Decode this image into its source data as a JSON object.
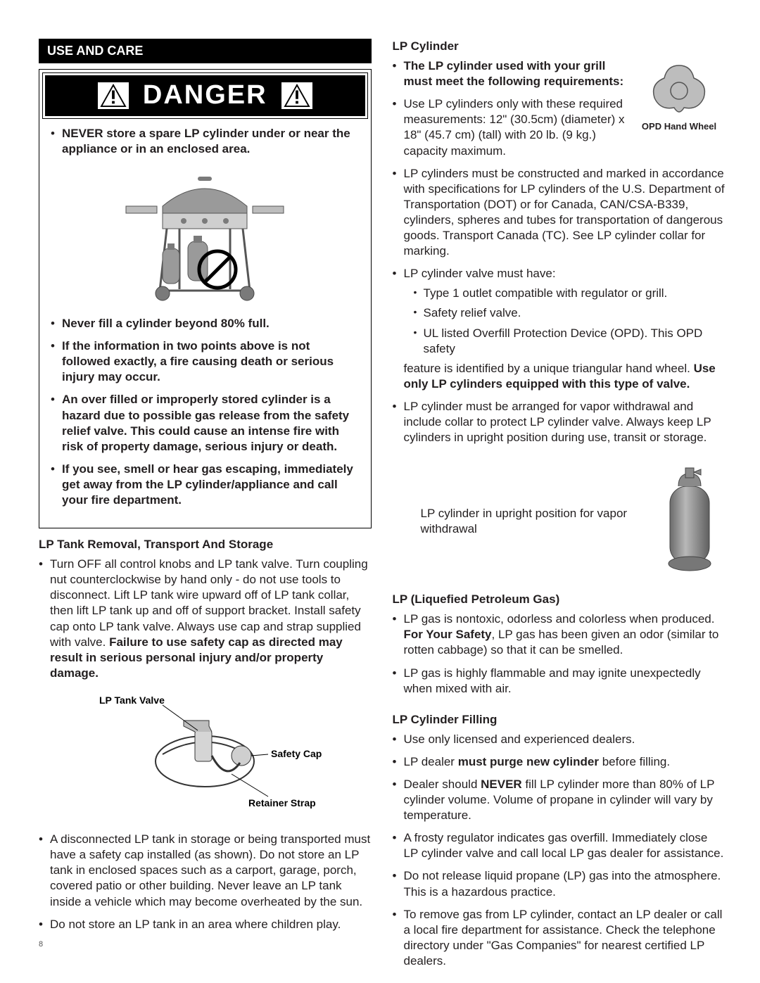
{
  "page_number": "8",
  "left": {
    "section_header": "USE AND CARE",
    "danger_word": "DANGER",
    "danger_bullets": [
      {
        "html": "<span class='bold'>NEVER store a spare LP cylinder under or near the appliance or in an enclosed area.</span>"
      },
      {
        "html": "<span class='bold'>Never fill a cylinder beyond 80% full.</span>"
      },
      {
        "html": "<span class='bold'>If the information in two points above is not followed exactly, a fire causing death or serious injury may occur.</span>"
      },
      {
        "html": "<span class='bold'>An over filled or improperly stored cylinder is a hazard due to possible gas release from the safety relief valve.  This could cause an intense fire with risk of property damage, serious injury or death.</span>"
      },
      {
        "html": "<span class='bold'>If you see, smell or hear gas escaping, immediately get away from the LP cylinder/appliance and call your fire department.</span>"
      }
    ],
    "tank_removal_heading": "LP Tank Removal, Transport And Storage",
    "tank_removal_bullets": [
      {
        "html": "Turn OFF all control knobs and LP tank valve. Turn coupling nut counterclockwise by hand only - do not use tools to disconnect. Lift LP tank wire upward off of LP tank collar, then lift LP tank up and off of support bracket. Install safety cap onto LP tank valve. Always use cap and strap supplied with valve. <span class='bold'>Failure to use safety cap as directed may result in serious personal injury and/or property damage.</span>"
      },
      {
        "html": "A disconnected LP tank in storage or being transported must have a safety cap installed (as shown). Do not store an LP tank in enclosed spaces such as a carport, garage, porch, covered patio or other building. Never leave an LP tank inside a vehicle which may become overheated by the sun."
      },
      {
        "html": "Do not store an LP tank in an area where children play."
      }
    ],
    "fig_labels": {
      "valve": "LP Tank Valve",
      "cap": "Safety Cap",
      "strap": "Retainer Strap"
    }
  },
  "right": {
    "lp_cyl_heading": "LP Cylinder",
    "opd_caption": "OPD Hand Wheel",
    "lp_cyl_bullets": [
      {
        "html": "<span class='bold'>The LP cylinder used with your grill must meet the following requirements:</span>"
      },
      {
        "html": "Use LP cylinders only with these required measurements: 12\" (30.5cm) (diameter) x 18\" (45.7 cm) (tall) with 20 lb. (9 kg.) capacity maximum."
      },
      {
        "html": "LP cylinders must be constructed and marked in accordance with specifications for LP cylinders of the U.S. Department of Transportation (DOT) or for Canada, CAN/CSA-B339, cylinders, spheres and tubes for transportation of dangerous goods. Transport Canada (TC). See LP cylinder collar for marking."
      },
      {
        "html": "LP cylinder valve must have:",
        "sub": [
          "Type 1 outlet compatible with regulator or grill.",
          "Safety relief valve.",
          "UL listed Overfill Protection Device (OPD). This OPD safety"
        ],
        "tail": "feature is identified by a unique triangular hand wheel. <span class='bold'>Use only LP cylinders equipped with this type of valve.</span>"
      },
      {
        "html": "LP cylinder must be arranged for vapor withdrawal and include collar to protect LP cylinder valve. Always keep LP cylinders in upright position during use, transit or storage."
      }
    ],
    "upright_caption": "LP cylinder in upright position for vapor withdrawal",
    "lpg_heading": "LP (Liquefied Petroleum Gas)",
    "lpg_bullets": [
      {
        "html": "LP gas is nontoxic, odorless and colorless when produced. <span class='bold'>For Your Safety</span>, LP gas has been given an odor (similar to rotten cabbage) so that it can be smelled."
      },
      {
        "html": "LP gas is highly flammable and may ignite unexpectedly when mixed with air."
      }
    ],
    "fill_heading": "LP Cylinder Filling",
    "fill_bullets": [
      {
        "html": "Use only licensed and experienced dealers."
      },
      {
        "html": "LP dealer <span class='bold'>must purge new cylinder</span> before filling."
      },
      {
        "html": "Dealer should <span class='bold'>NEVER</span> fill LP cylinder more than 80% of LP cylinder volume. Volume of propane in cylinder will vary by temperature."
      },
      {
        "html": "A frosty regulator indicates gas overfill. Immediately close LP cylinder valve and call local LP gas dealer for assistance."
      },
      {
        "html": "Do not release liquid propane (LP) gas into the atmosphere. This is a hazardous practice."
      },
      {
        "html": "To remove gas from LP cylinder, contact an LP dealer or call a local fire department for assistance. Check the telephone directory under \"Gas Companies\" for nearest certified LP dealers."
      }
    ]
  },
  "colors": {
    "text": "#231f20",
    "bg": "#ffffff",
    "header_bg": "#000000",
    "header_fg": "#ffffff",
    "gray1": "#9a9a9a",
    "gray2": "#7a7a7a",
    "gray3": "#bdbdbd"
  }
}
